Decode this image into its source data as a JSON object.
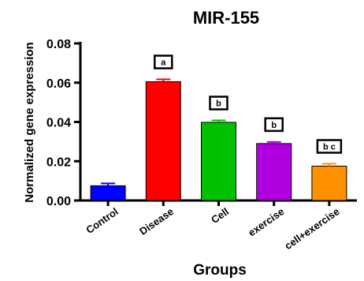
{
  "chart_data": {
    "type": "bar",
    "title": "MIR-155",
    "xlabel": "Groups",
    "ylabel": "Normalized gene expression",
    "ylim": [
      0,
      0.08
    ],
    "yticks": [
      "0.00",
      "0.02",
      "0.04",
      "0.06",
      "0.08"
    ],
    "grid": false,
    "categories": [
      "Control",
      "Disease",
      "Cell",
      "exercise",
      "cell+exercise"
    ],
    "values": [
      0.0075,
      0.0605,
      0.0398,
      0.029,
      0.0175
    ],
    "errors": [
      0.0012,
      0.0012,
      0.001,
      0.0008,
      0.0012
    ],
    "significance": [
      "",
      "a",
      "b",
      "b",
      "b c"
    ],
    "colors": [
      "#0000ff",
      "#ff0000",
      "#00c000",
      "#b000e0",
      "#ff9000"
    ]
  }
}
